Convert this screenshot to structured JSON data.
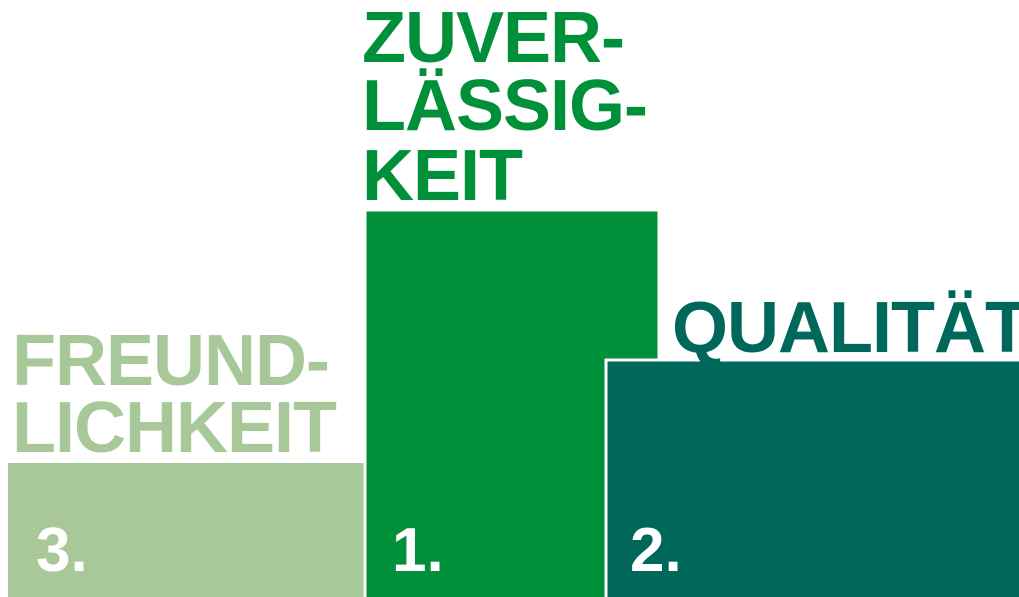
{
  "podium": [
    {
      "label": [
        "FREUND-",
        "LICHKEIT"
      ],
      "rank": "3."
    },
    {
      "label": [
        "ZUVER-",
        "LÄSSIG-",
        "KEIT"
      ],
      "rank": "1."
    },
    {
      "label": [
        "QUALITÄT"
      ],
      "rank": "2."
    }
  ]
}
